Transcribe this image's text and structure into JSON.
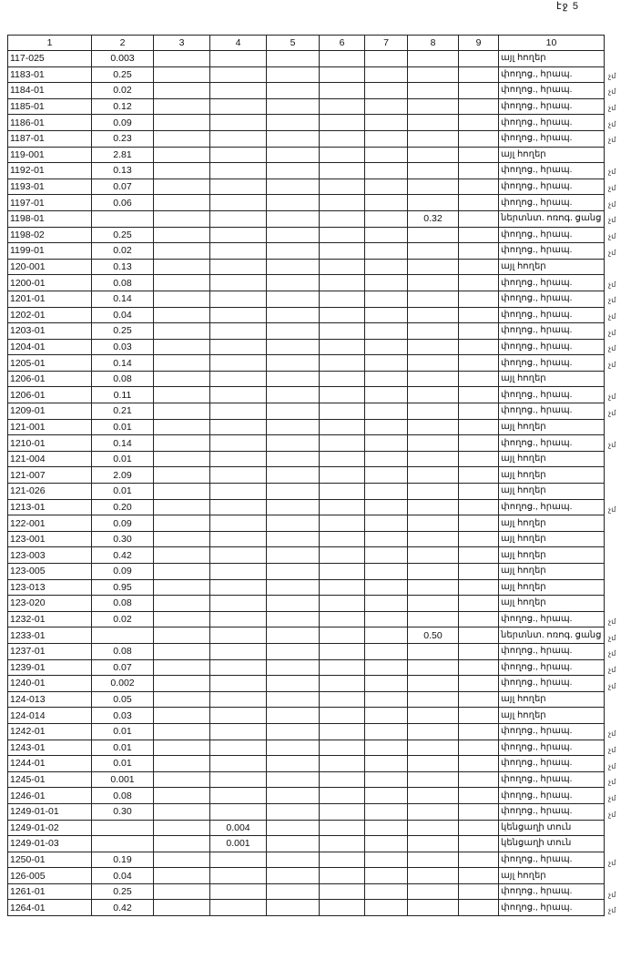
{
  "page_label": "էջ 5",
  "headers": [
    "1",
    "2",
    "3",
    "4",
    "5",
    "6",
    "7",
    "8",
    "9",
    "10"
  ],
  "rows": [
    {
      "c": [
        "117-025",
        "0.003",
        "",
        "",
        "",
        "",
        "",
        "",
        "",
        "այլ հողեր"
      ],
      "m": ""
    },
    {
      "c": [
        "1183-01",
        "0.25",
        "",
        "",
        "",
        "",
        "",
        "",
        "",
        "փողոց., հրապ."
      ],
      "m": "չմ"
    },
    {
      "c": [
        "1184-01",
        "0.02",
        "",
        "",
        "",
        "",
        "",
        "",
        "",
        "փողոց., հրապ."
      ],
      "m": "չմ"
    },
    {
      "c": [
        "1185-01",
        "0.12",
        "",
        "",
        "",
        "",
        "",
        "",
        "",
        "փողոց., հրապ."
      ],
      "m": "չմ"
    },
    {
      "c": [
        "1186-01",
        "0.09",
        "",
        "",
        "",
        "",
        "",
        "",
        "",
        "փողոց., հրապ."
      ],
      "m": "չմ"
    },
    {
      "c": [
        "1187-01",
        "0.23",
        "",
        "",
        "",
        "",
        "",
        "",
        "",
        "փողոց., հրապ."
      ],
      "m": "չմ"
    },
    {
      "c": [
        "119-001",
        "2.81",
        "",
        "",
        "",
        "",
        "",
        "",
        "",
        "այլ հողեր"
      ],
      "m": ""
    },
    {
      "c": [
        "1192-01",
        "0.13",
        "",
        "",
        "",
        "",
        "",
        "",
        "",
        "փողոց., հրապ."
      ],
      "m": "չմ"
    },
    {
      "c": [
        "1193-01",
        "0.07",
        "",
        "",
        "",
        "",
        "",
        "",
        "",
        "փողոց., հրապ."
      ],
      "m": "չմ"
    },
    {
      "c": [
        "1197-01",
        "0.06",
        "",
        "",
        "",
        "",
        "",
        "",
        "",
        "փողոց., հրապ."
      ],
      "m": "չմ"
    },
    {
      "c": [
        "1198-01",
        "",
        "",
        "",
        "",
        "",
        "",
        "0.32",
        "",
        "ներտնտ. ոռոգ. ցանց"
      ],
      "m": "չմ"
    },
    {
      "c": [
        "1198-02",
        "0.25",
        "",
        "",
        "",
        "",
        "",
        "",
        "",
        "փողոց., հրապ."
      ],
      "m": "չմ"
    },
    {
      "c": [
        "1199-01",
        "0.02",
        "",
        "",
        "",
        "",
        "",
        "",
        "",
        "փողոց., հրապ."
      ],
      "m": "չմ"
    },
    {
      "c": [
        "120-001",
        "0.13",
        "",
        "",
        "",
        "",
        "",
        "",
        "",
        "այլ հողեր"
      ],
      "m": ""
    },
    {
      "c": [
        "1200-01",
        "0.08",
        "",
        "",
        "",
        "",
        "",
        "",
        "",
        "փողոց., հրապ."
      ],
      "m": "չմ"
    },
    {
      "c": [
        "1201-01",
        "0.14",
        "",
        "",
        "",
        "",
        "",
        "",
        "",
        "փողոց., հրապ."
      ],
      "m": "չմ"
    },
    {
      "c": [
        "1202-01",
        "0.04",
        "",
        "",
        "",
        "",
        "",
        "",
        "",
        "փողոց., հրապ."
      ],
      "m": "չմ"
    },
    {
      "c": [
        "1203-01",
        "0.25",
        "",
        "",
        "",
        "",
        "",
        "",
        "",
        "փողոց., հրապ."
      ],
      "m": "չմ"
    },
    {
      "c": [
        "1204-01",
        "0.03",
        "",
        "",
        "",
        "",
        "",
        "",
        "",
        "փողոց., հրապ."
      ],
      "m": "չմ"
    },
    {
      "c": [
        "1205-01",
        "0.14",
        "",
        "",
        "",
        "",
        "",
        "",
        "",
        "փողոց., հրապ."
      ],
      "m": "չմ"
    },
    {
      "c": [
        "1206-01",
        "0.08",
        "",
        "",
        "",
        "",
        "",
        "",
        "",
        "այլ հողեր"
      ],
      "m": ""
    },
    {
      "c": [
        "1206-01",
        "0.11",
        "",
        "",
        "",
        "",
        "",
        "",
        "",
        "փողոց., հրապ."
      ],
      "m": "չմ"
    },
    {
      "c": [
        "1209-01",
        "0.21",
        "",
        "",
        "",
        "",
        "",
        "",
        "",
        "փողոց., հրապ."
      ],
      "m": "չմ"
    },
    {
      "c": [
        "121-001",
        "0.01",
        "",
        "",
        "",
        "",
        "",
        "",
        "",
        "այլ հողեր"
      ],
      "m": ""
    },
    {
      "c": [
        "1210-01",
        "0.14",
        "",
        "",
        "",
        "",
        "",
        "",
        "",
        "փողոց., հրապ."
      ],
      "m": "չմ"
    },
    {
      "c": [
        "121-004",
        "0.01",
        "",
        "",
        "",
        "",
        "",
        "",
        "",
        "այլ հողեր"
      ],
      "m": ""
    },
    {
      "c": [
        "121-007",
        "2.09",
        "",
        "",
        "",
        "",
        "",
        "",
        "",
        "այլ հողեր"
      ],
      "m": ""
    },
    {
      "c": [
        "121-026",
        "0.01",
        "",
        "",
        "",
        "",
        "",
        "",
        "",
        "այլ հողեր"
      ],
      "m": ""
    },
    {
      "c": [
        "1213-01",
        "0.20",
        "",
        "",
        "",
        "",
        "",
        "",
        "",
        "փողոց., հրապ."
      ],
      "m": "չմ"
    },
    {
      "c": [
        "122-001",
        "0.09",
        "",
        "",
        "",
        "",
        "",
        "",
        "",
        "այլ հողեր"
      ],
      "m": ""
    },
    {
      "c": [
        "123-001",
        "0.30",
        "",
        "",
        "",
        "",
        "",
        "",
        "",
        "այլ հողեր"
      ],
      "m": ""
    },
    {
      "c": [
        "123-003",
        "0.42",
        "",
        "",
        "",
        "",
        "",
        "",
        "",
        "այլ հողեր"
      ],
      "m": ""
    },
    {
      "c": [
        "123-005",
        "0.09",
        "",
        "",
        "",
        "",
        "",
        "",
        "",
        "այլ հողեր"
      ],
      "m": ""
    },
    {
      "c": [
        "123-013",
        "0.95",
        "",
        "",
        "",
        "",
        "",
        "",
        "",
        "այլ հողեր"
      ],
      "m": ""
    },
    {
      "c": [
        "123-020",
        "0.08",
        "",
        "",
        "",
        "",
        "",
        "",
        "",
        "այլ հողեր"
      ],
      "m": ""
    },
    {
      "c": [
        "1232-01",
        "0.02",
        "",
        "",
        "",
        "",
        "",
        "",
        "",
        "փողոց., հրապ."
      ],
      "m": "չմ"
    },
    {
      "c": [
        "1233-01",
        "",
        "",
        "",
        "",
        "",
        "",
        "0.50",
        "",
        "ներտնտ. ոռոգ. ցանց"
      ],
      "m": "չմ"
    },
    {
      "c": [
        "1237-01",
        "0.08",
        "",
        "",
        "",
        "",
        "",
        "",
        "",
        "փողոց., հրապ."
      ],
      "m": "չմ"
    },
    {
      "c": [
        "1239-01",
        "0.07",
        "",
        "",
        "",
        "",
        "",
        "",
        "",
        "փողոց., հրապ."
      ],
      "m": "չմ"
    },
    {
      "c": [
        "1240-01",
        "0.002",
        "",
        "",
        "",
        "",
        "",
        "",
        "",
        "փողոց., հրապ."
      ],
      "m": "չմ"
    },
    {
      "c": [
        "124-013",
        "0.05",
        "",
        "",
        "",
        "",
        "",
        "",
        "",
        "այլ հողեր"
      ],
      "m": ""
    },
    {
      "c": [
        "124-014",
        "0.03",
        "",
        "",
        "",
        "",
        "",
        "",
        "",
        "այլ հողեր"
      ],
      "m": ""
    },
    {
      "c": [
        "1242-01",
        "0.01",
        "",
        "",
        "",
        "",
        "",
        "",
        "",
        "փողոց., հրապ."
      ],
      "m": "չմ"
    },
    {
      "c": [
        "1243-01",
        "0.01",
        "",
        "",
        "",
        "",
        "",
        "",
        "",
        "փողոց., հրապ."
      ],
      "m": "չմ"
    },
    {
      "c": [
        "1244-01",
        "0.01",
        "",
        "",
        "",
        "",
        "",
        "",
        "",
        "փողոց., հրապ."
      ],
      "m": "չմ"
    },
    {
      "c": [
        "1245-01",
        "0.001",
        "",
        "",
        "",
        "",
        "",
        "",
        "",
        "փողոց., հրապ."
      ],
      "m": "չմ"
    },
    {
      "c": [
        "1246-01",
        "0.08",
        "",
        "",
        "",
        "",
        "",
        "",
        "",
        "փողոց., հրապ."
      ],
      "m": "չմ"
    },
    {
      "c": [
        "1249-01-01",
        "0.30",
        "",
        "",
        "",
        "",
        "",
        "",
        "",
        "փողոց., հրապ."
      ],
      "m": "չմ"
    },
    {
      "c": [
        "1249-01-02",
        "",
        "",
        "0.004",
        "",
        "",
        "",
        "",
        "",
        "կենցաղի տուն"
      ],
      "m": ""
    },
    {
      "c": [
        "1249-01-03",
        "",
        "",
        "0.001",
        "",
        "",
        "",
        "",
        "",
        "կենցաղի տուն"
      ],
      "m": ""
    },
    {
      "c": [
        "1250-01",
        "0.19",
        "",
        "",
        "",
        "",
        "",
        "",
        "",
        "փողոց., հրապ."
      ],
      "m": "չմ"
    },
    {
      "c": [
        "126-005",
        "0.04",
        "",
        "",
        "",
        "",
        "",
        "",
        "",
        "այլ հողեր"
      ],
      "m": ""
    },
    {
      "c": [
        "1261-01",
        "0.25",
        "",
        "",
        "",
        "",
        "",
        "",
        "",
        "փողոց., հրապ."
      ],
      "m": "չմ"
    },
    {
      "c": [
        "1264-01",
        "0.42",
        "",
        "",
        "",
        "",
        "",
        "",
        "",
        "փողոց., հրապ."
      ],
      "m": "չմ"
    }
  ]
}
